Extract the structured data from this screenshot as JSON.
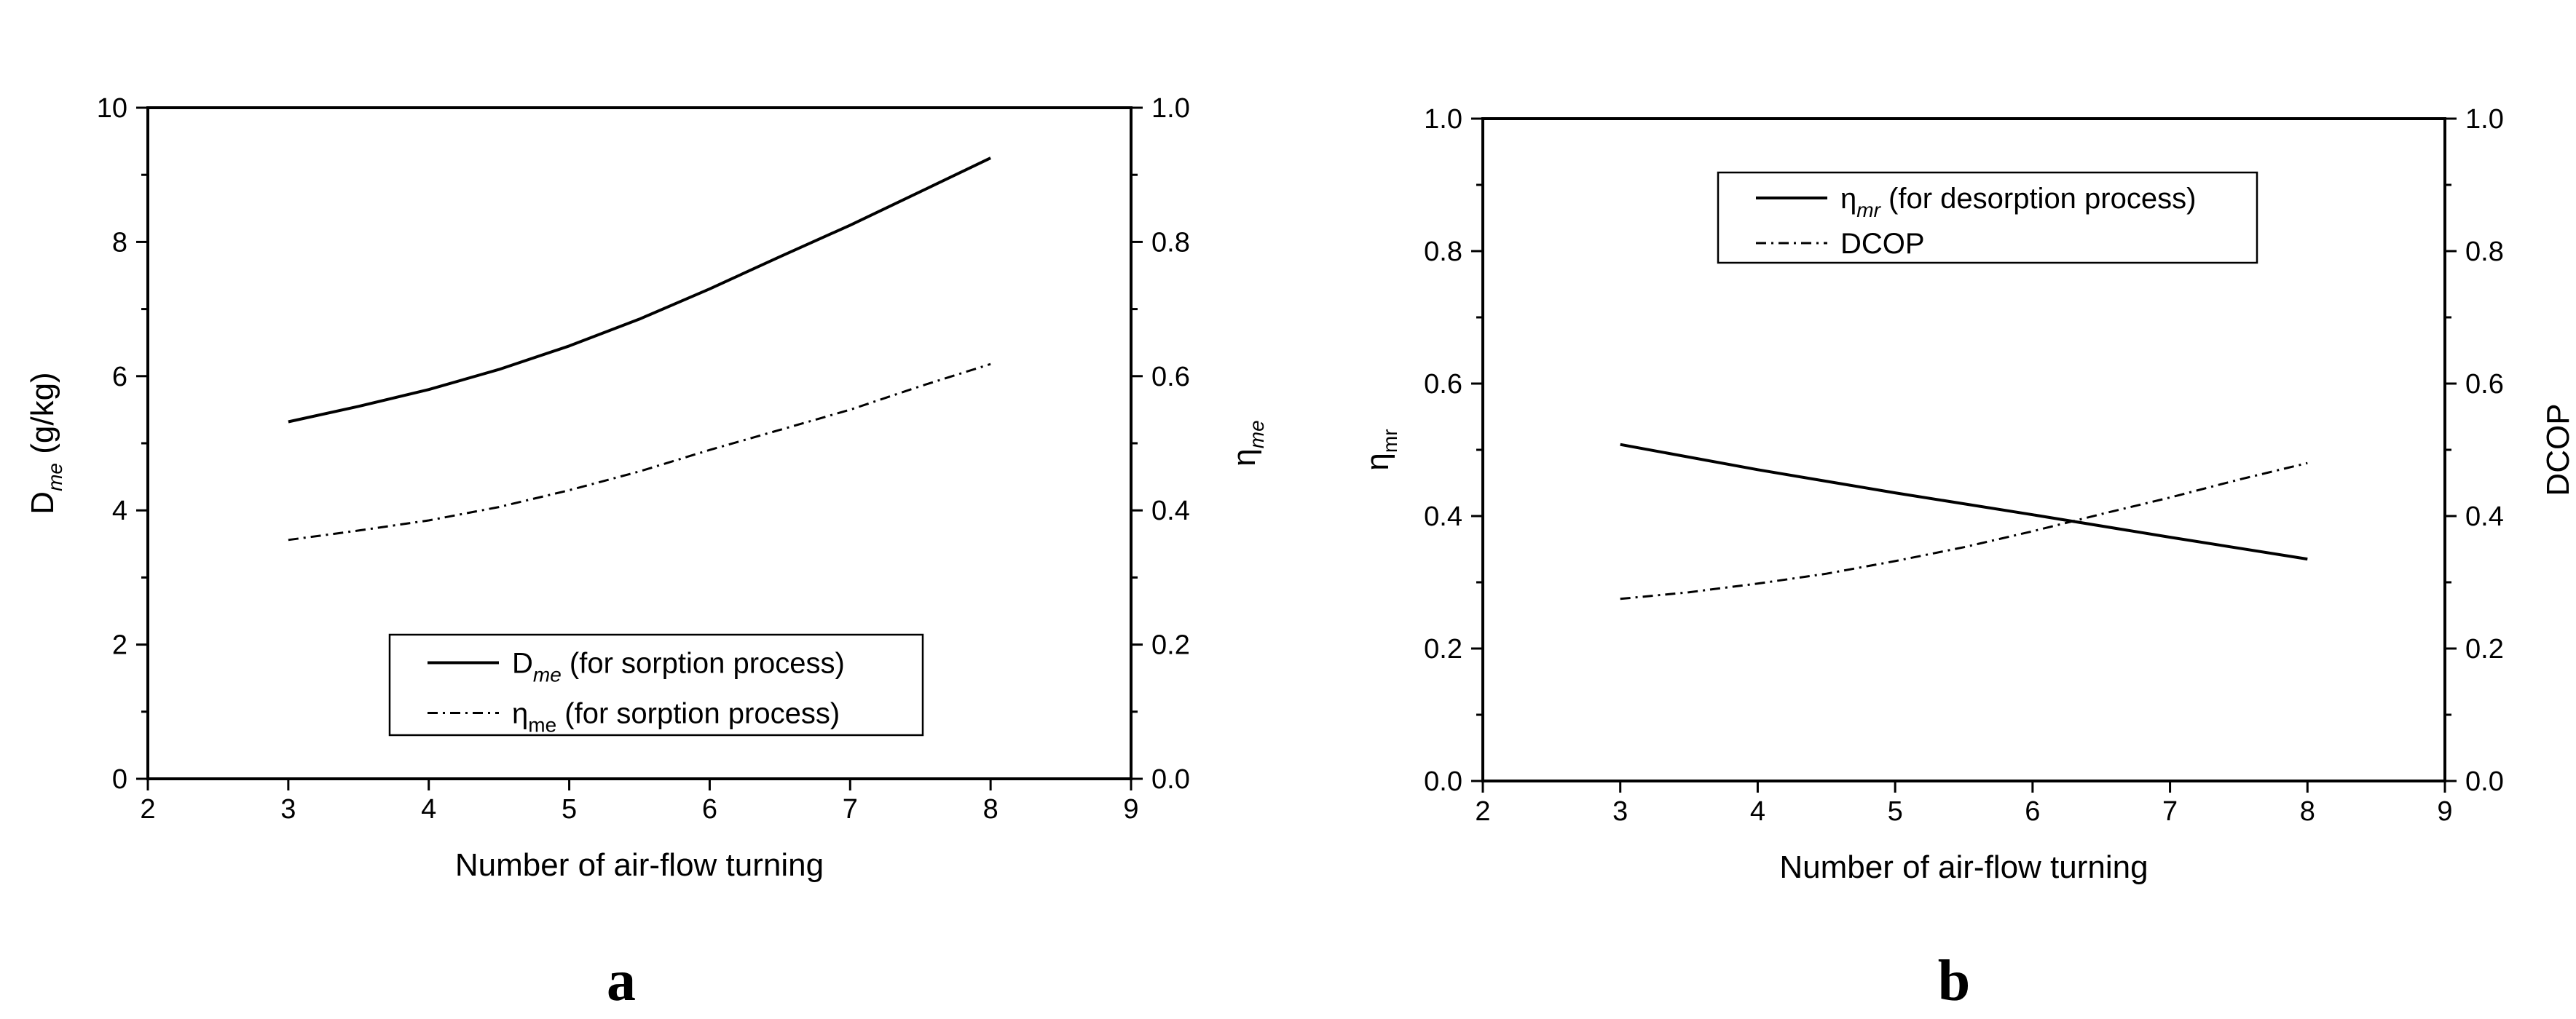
{
  "chart_data": [
    {
      "type": "line",
      "panel_label": "a",
      "xlabel": "Number of air-flow turning",
      "xlim": [
        2,
        9
      ],
      "xticks": [
        2,
        3,
        4,
        5,
        6,
        7,
        8,
        9
      ],
      "ylabel_left": {
        "main": "D",
        "sub": "me",
        "rest": " (g/kg)"
      },
      "ylim_left": [
        0,
        10
      ],
      "yticks_left": [
        "0",
        "2",
        "4",
        "6",
        "8",
        "10"
      ],
      "ylabel_right": {
        "main": "η",
        "sub": "me",
        "rest": ""
      },
      "ylim_right": [
        0,
        1
      ],
      "yticks_right": [
        "0.0",
        "0.2",
        "0.4",
        "0.6",
        "0.8",
        "1.0"
      ],
      "legend_position": "bottom-center",
      "series": [
        {
          "legend": {
            "main": "D",
            "sub": "me",
            "rest": " (for sorption process)"
          },
          "axis": "left",
          "style": "solid",
          "x": [
            3,
            3.5,
            4,
            4.5,
            5,
            5.5,
            6,
            6.5,
            7,
            7.5,
            8
          ],
          "y": [
            5.32,
            5.55,
            5.8,
            6.1,
            6.45,
            6.85,
            7.3,
            7.78,
            8.25,
            8.75,
            9.25
          ]
        },
        {
          "legend": {
            "main": "η",
            "sub": "me",
            "rest": " (for sorption process)"
          },
          "axis": "right",
          "style": "dash-dot",
          "x": [
            3,
            3.5,
            4,
            4.5,
            5,
            5.5,
            6,
            6.5,
            7,
            7.5,
            8
          ],
          "y": [
            0.356,
            0.37,
            0.385,
            0.405,
            0.43,
            0.458,
            0.49,
            0.52,
            0.55,
            0.585,
            0.618
          ]
        }
      ]
    },
    {
      "type": "line",
      "panel_label": "b",
      "xlabel": "Number of air-flow turning",
      "xlim": [
        2,
        9
      ],
      "xticks": [
        2,
        3,
        4,
        5,
        6,
        7,
        8,
        9
      ],
      "ylabel_left": {
        "main": "η",
        "sub": "mr",
        "rest": ""
      },
      "ylim_left": [
        0,
        1
      ],
      "yticks_left": [
        "0.0",
        "0.2",
        "0.4",
        "0.6",
        "0.8",
        "1.0"
      ],
      "ylabel_right": {
        "main": "DCOP",
        "sub": "",
        "rest": ""
      },
      "ylim_right": [
        0,
        1
      ],
      "yticks_right": [
        "0.0",
        "0.2",
        "0.4",
        "0.6",
        "0.8",
        "1.0"
      ],
      "legend_position": "top-center",
      "series": [
        {
          "legend": {
            "main": "η",
            "sub": "mr",
            "rest": " (for desorption process)"
          },
          "axis": "left",
          "style": "solid",
          "x": [
            3,
            4,
            5,
            6,
            7,
            8
          ],
          "y": [
            0.508,
            0.47,
            0.435,
            0.402,
            0.368,
            0.335
          ]
        },
        {
          "legend": {
            "main": "DCOP",
            "sub": "",
            "rest": ""
          },
          "axis": "right",
          "style": "dash-dot",
          "x": [
            3,
            3.5,
            4,
            4.5,
            5,
            5.5,
            6,
            6.5,
            7,
            7.5,
            8
          ],
          "y": [
            0.275,
            0.285,
            0.298,
            0.313,
            0.332,
            0.353,
            0.377,
            0.403,
            0.428,
            0.455,
            0.48
          ]
        }
      ]
    }
  ]
}
